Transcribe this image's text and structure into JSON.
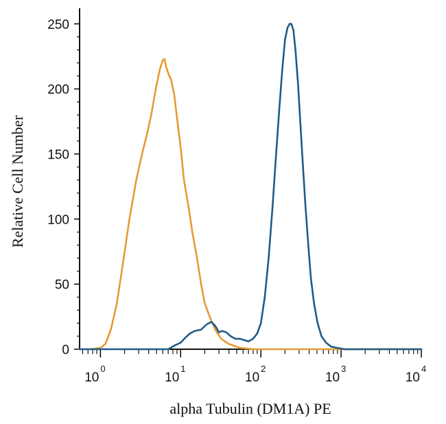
{
  "chart_data": {
    "type": "line",
    "xlabel": "alpha Tubulin (DM1A) PE",
    "ylabel": "Relative Cell Number",
    "xscale": "log",
    "xlim": [
      0.55,
      10000
    ],
    "ylim": [
      0,
      262
    ],
    "x_ticks": [
      {
        "base": "10",
        "exp": "0",
        "value": 1
      },
      {
        "base": "10",
        "exp": "1",
        "value": 10
      },
      {
        "base": "10",
        "exp": "2",
        "value": 100
      },
      {
        "base": "10",
        "exp": "3",
        "value": 1000
      },
      {
        "base": "10",
        "exp": "4",
        "value": 10000
      }
    ],
    "y_ticks": [
      "0",
      "50",
      "100",
      "150",
      "200",
      "250"
    ],
    "grid": false,
    "series": [
      {
        "color": "#e69a30",
        "points": [
          [
            0.75,
            0
          ],
          [
            1.0,
            1
          ],
          [
            1.15,
            4
          ],
          [
            1.35,
            15
          ],
          [
            1.6,
            35
          ],
          [
            1.9,
            65
          ],
          [
            2.3,
            100
          ],
          [
            2.8,
            130
          ],
          [
            3.3,
            150
          ],
          [
            3.8,
            165
          ],
          [
            4.3,
            180
          ],
          [
            4.9,
            200
          ],
          [
            5.5,
            215
          ],
          [
            6.0,
            222
          ],
          [
            6.3,
            223
          ],
          [
            6.6,
            217
          ],
          [
            7.0,
            212
          ],
          [
            7.6,
            207
          ],
          [
            8.3,
            196
          ],
          [
            9.0,
            178
          ],
          [
            10.0,
            155
          ],
          [
            11.0,
            130
          ],
          [
            12.5,
            110
          ],
          [
            14.0,
            90
          ],
          [
            16.0,
            70
          ],
          [
            18.0,
            50
          ],
          [
            20.0,
            35
          ],
          [
            23.0,
            25
          ],
          [
            27.0,
            15
          ],
          [
            32.0,
            8
          ],
          [
            40.0,
            4
          ],
          [
            55.0,
            1
          ],
          [
            80.0,
            0
          ],
          [
            1000.0,
            0
          ],
          [
            10000.0,
            0
          ]
        ]
      },
      {
        "color": "#1f5a87",
        "points": [
          [
            0.55,
            0
          ],
          [
            7.0,
            0
          ],
          [
            8.5,
            3
          ],
          [
            10.0,
            5
          ],
          [
            11.5,
            9
          ],
          [
            13.0,
            12
          ],
          [
            15.0,
            14
          ],
          [
            18.0,
            15
          ],
          [
            21.0,
            19
          ],
          [
            24.0,
            21
          ],
          [
            27.0,
            18
          ],
          [
            30.0,
            13
          ],
          [
            33.0,
            14
          ],
          [
            37.0,
            13
          ],
          [
            42.0,
            10
          ],
          [
            48.0,
            8
          ],
          [
            55.0,
            8
          ],
          [
            62.0,
            7
          ],
          [
            70.0,
            6
          ],
          [
            80.0,
            8
          ],
          [
            90.0,
            12
          ],
          [
            100.0,
            20
          ],
          [
            112.0,
            40
          ],
          [
            125.0,
            70
          ],
          [
            140.0,
            110
          ],
          [
            155.0,
            150
          ],
          [
            170.0,
            185
          ],
          [
            185.0,
            215
          ],
          [
            200.0,
            238
          ],
          [
            215.0,
            247
          ],
          [
            228.0,
            250
          ],
          [
            240.0,
            250
          ],
          [
            255.0,
            245
          ],
          [
            270.0,
            230
          ],
          [
            290.0,
            205
          ],
          [
            310.0,
            175
          ],
          [
            335.0,
            140
          ],
          [
            360.0,
            110
          ],
          [
            390.0,
            80
          ],
          [
            420.0,
            55
          ],
          [
            460.0,
            35
          ],
          [
            510.0,
            20
          ],
          [
            570.0,
            10
          ],
          [
            650.0,
            5
          ],
          [
            750.0,
            2
          ],
          [
            900.0,
            1
          ],
          [
            1100.0,
            0
          ],
          [
            10000.0,
            0
          ]
        ]
      }
    ]
  }
}
